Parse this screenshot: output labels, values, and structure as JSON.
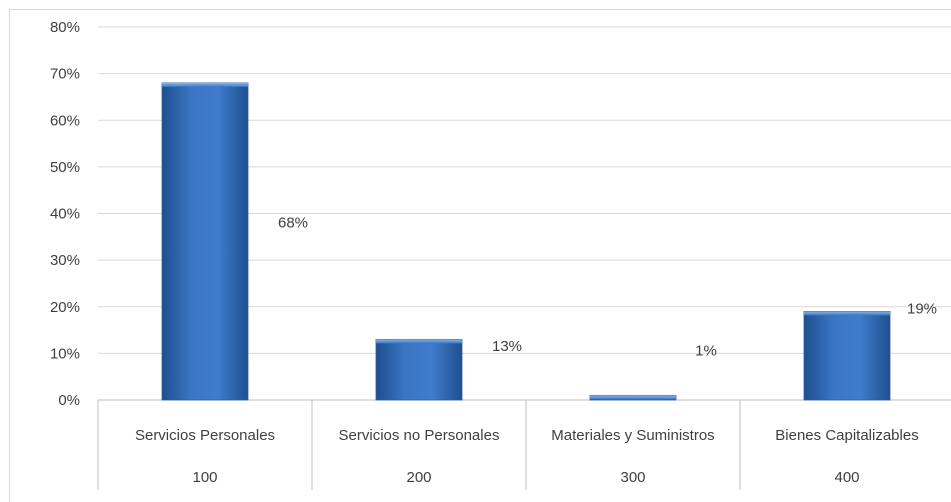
{
  "chart_data": {
    "type": "bar",
    "categories": [
      {
        "name": "Servicios Personales",
        "code": "100"
      },
      {
        "name": "Servicios no Personales",
        "code": "200"
      },
      {
        "name": "Materiales y Suministros",
        "code": "300"
      },
      {
        "name": "Bienes Capitalizables",
        "code": "400"
      }
    ],
    "values": [
      0.68,
      0.13,
      0.01,
      0.19
    ],
    "data_labels": [
      "68%",
      "13%",
      "1%",
      "19%"
    ],
    "yticks": [
      "0%",
      "10%",
      "20%",
      "30%",
      "40%",
      "50%",
      "60%",
      "70%",
      "80%"
    ],
    "ylim": [
      0,
      0.8
    ],
    "grid": true,
    "legend": "none",
    "title": "",
    "xlabel": "",
    "ylabel": "",
    "colors": {
      "bar_fill": "#3a76c4",
      "bar_dark": "#1f4f8f",
      "bar_light": "#5b95d8",
      "grid": "#d9d9d9",
      "axis": "#bfbfbf",
      "text": "#404040"
    }
  }
}
